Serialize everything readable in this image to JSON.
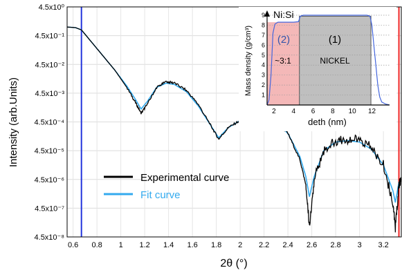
{
  "chart_data": [
    {
      "type": "line",
      "xlabel": "2θ (°)",
      "ylabel": "Intensity (arb.Units)",
      "xlim": [
        0.55,
        3.35
      ],
      "ylim_decades": [
        -8,
        0
      ],
      "y_scale": "log",
      "x_ticks": [
        "0.6",
        "0.8",
        "1",
        "1.2",
        "1.4",
        "1.6",
        "1.8",
        "2",
        "2.2",
        "2.4",
        "2.6",
        "2.8",
        "3",
        "3.2"
      ],
      "y_ticks": [
        "4.5x10⁰",
        "4.5x10⁻¹",
        "4.5x10⁻²",
        "4.5x10⁻³",
        "4.5x10⁻⁴",
        "4.5x10⁻⁵",
        "4.5x10⁻⁶",
        "4.5x10⁻⁷",
        "4.5x10⁻⁸"
      ],
      "grid": true,
      "legend": {
        "position": "bottom-left",
        "entries": [
          "Experimental curve",
          "Fit curve"
        ]
      },
      "vertical_lines": [
        {
          "x": 0.67,
          "color": "#2233dd"
        },
        {
          "x": 3.33,
          "color": "#ee2222"
        }
      ],
      "series": [
        {
          "name": "Experimental curve",
          "color": "#000000",
          "x": [
            0.55,
            0.62,
            0.67,
            0.75,
            0.85,
            0.95,
            1.05,
            1.12,
            1.17,
            1.22,
            1.3,
            1.38,
            1.45,
            1.55,
            1.65,
            1.75,
            1.82,
            1.9,
            2.0,
            2.1,
            2.2,
            2.3,
            2.4,
            2.5,
            2.55,
            2.58,
            2.62,
            2.7,
            2.8,
            2.9,
            3.0,
            3.1,
            3.2,
            3.28,
            3.3,
            3.33,
            3.35
          ],
          "y_exp": [
            -0.7,
            -0.72,
            -0.8,
            -1.2,
            -1.7,
            -2.2,
            -2.8,
            -3.3,
            -3.7,
            -3.4,
            -2.8,
            -2.6,
            -2.65,
            -2.9,
            -3.4,
            -4.1,
            -4.6,
            -4.2,
            -3.95,
            -3.85,
            -3.85,
            -4.0,
            -4.4,
            -5.3,
            -6.2,
            -7.6,
            -6.0,
            -5.0,
            -4.65,
            -4.6,
            -4.65,
            -4.9,
            -5.5,
            -6.8,
            -7.7,
            -6.2,
            -6.0
          ]
        },
        {
          "name": "Fit curve",
          "color": "#33aaee",
          "x": [
            0.55,
            0.62,
            0.67,
            0.75,
            0.85,
            0.95,
            1.05,
            1.12,
            1.17,
            1.22,
            1.3,
            1.38,
            1.45,
            1.55,
            1.65,
            1.75,
            1.82,
            1.9,
            2.0,
            2.1,
            2.2,
            2.3,
            2.4,
            2.5,
            2.55,
            2.58,
            2.62,
            2.7,
            2.8,
            2.9,
            3.0,
            3.1,
            3.2,
            3.28,
            3.3,
            3.33,
            3.35
          ],
          "y_exp": [
            -0.7,
            -0.72,
            -0.8,
            -1.2,
            -1.7,
            -2.2,
            -2.75,
            -3.2,
            -3.55,
            -3.3,
            -2.8,
            -2.65,
            -2.7,
            -2.95,
            -3.45,
            -4.1,
            -4.55,
            -4.2,
            -3.95,
            -3.85,
            -3.85,
            -4.0,
            -4.4,
            -5.2,
            -5.9,
            -6.6,
            -5.9,
            -5.0,
            -4.7,
            -4.65,
            -4.7,
            -4.95,
            -5.5,
            -6.4,
            -6.8,
            -6.1,
            -6.0
          ]
        }
      ]
    },
    {
      "type": "area",
      "title": "Ni:Si",
      "xlabel": "deth (nm)",
      "ylabel": "Mass density (g/cm³)",
      "xlim": [
        1.3,
        13.8
      ],
      "ylim": [
        0,
        9
      ],
      "x_ticks": [
        "2",
        "4",
        "6",
        "8",
        "10",
        "12"
      ],
      "y_ticks": [
        "0",
        "1",
        "2",
        "3",
        "4",
        "5",
        "6",
        "7",
        "8",
        "9"
      ],
      "regions": [
        {
          "label_num": "(2)",
          "label": "~3:1",
          "x_from": 1.3,
          "x_to": 4.6,
          "density": 8.3,
          "color": "#f4b8b8"
        },
        {
          "label_num": "(1)",
          "label": "NICKEL",
          "x_from": 4.6,
          "x_to": 11.9,
          "density": 8.9,
          "color": "#bfbfbf"
        }
      ],
      "series": [
        {
          "color": "#4466dd",
          "x": [
            1.3,
            1.5,
            1.7,
            1.9,
            2.1,
            2.4,
            3.0,
            4.0,
            4.5,
            4.7,
            5.0,
            6.0,
            8.0,
            10.0,
            11.0,
            11.5,
            11.8,
            12.0,
            12.2,
            12.4,
            12.6,
            12.8,
            13.0,
            13.4,
            13.8
          ],
          "y": [
            0.0,
            0.5,
            3.0,
            7.2,
            8.1,
            8.3,
            8.3,
            8.3,
            8.35,
            8.9,
            9.0,
            9.0,
            9.0,
            9.0,
            9.0,
            9.0,
            8.9,
            8.0,
            6.0,
            4.0,
            2.0,
            0.8,
            0.3,
            0.1,
            0.0
          ]
        }
      ]
    }
  ]
}
